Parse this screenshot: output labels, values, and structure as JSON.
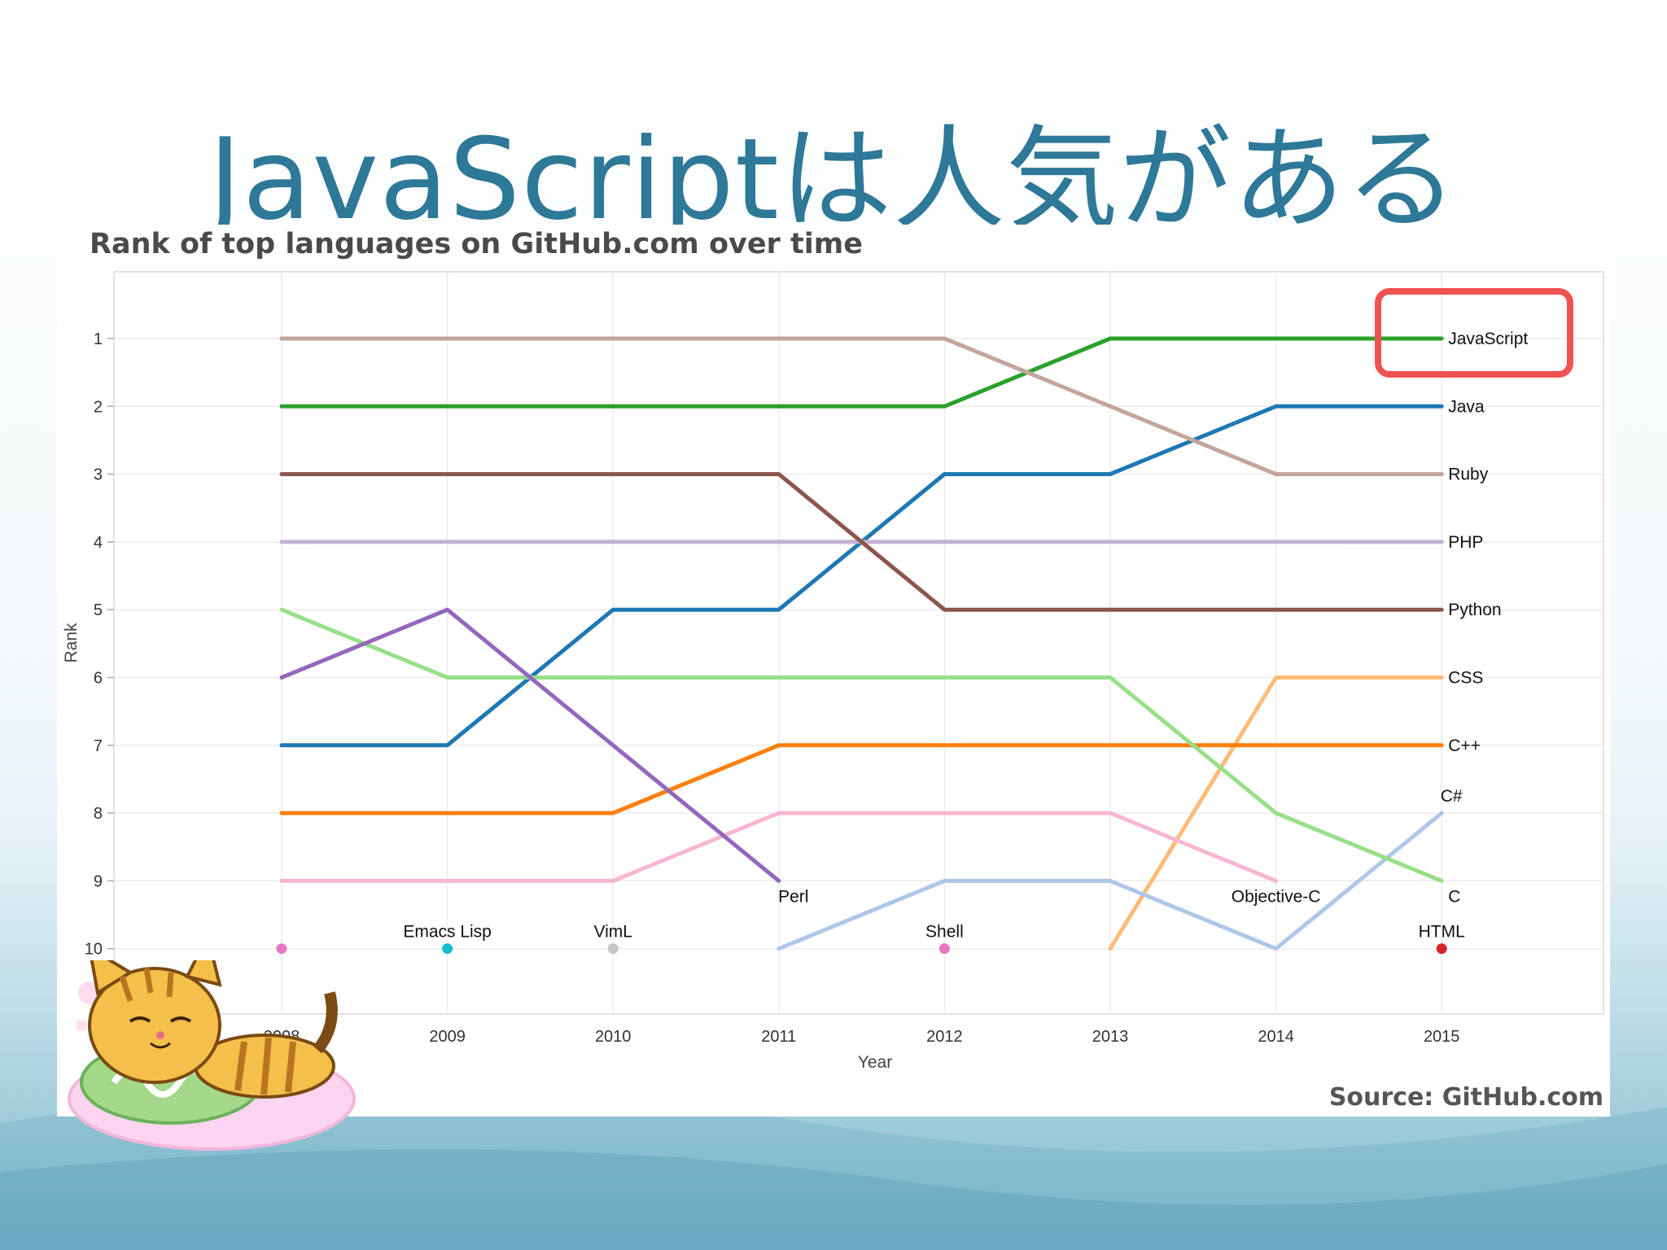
{
  "slide": {
    "title": "JavaScriptは人気がある",
    "highlight_color": "#f0524f"
  },
  "chart_data": {
    "type": "line",
    "title": "Rank of top languages on GitHub.com over time",
    "xlabel": "Year",
    "ylabel": "Rank",
    "source": "Source: GitHub.com",
    "x": [
      "2008",
      "2009",
      "2010",
      "2011",
      "2012",
      "2013",
      "2014",
      "2015"
    ],
    "yticks": [
      1,
      2,
      3,
      4,
      5,
      6,
      7,
      8,
      9,
      10
    ],
    "ylim": [
      10,
      1
    ],
    "y_inverted": true,
    "grid": true,
    "series": [
      {
        "name": "JavaScript",
        "color": "#2ca02c",
        "width": 5,
        "values": [
          2,
          2,
          2,
          2,
          2,
          1,
          1,
          1
        ]
      },
      {
        "name": "Java",
        "color": "#1f77b4",
        "width": 5,
        "values": [
          7,
          7,
          5,
          5,
          3,
          3,
          2,
          2
        ]
      },
      {
        "name": "Ruby",
        "color": "#c4a59c",
        "width": 5,
        "values": [
          1,
          1,
          1,
          1,
          1,
          2,
          3,
          3
        ]
      },
      {
        "name": "PHP",
        "color": "#c5b0d5",
        "width": 5,
        "values": [
          4,
          4,
          4,
          4,
          4,
          4,
          4,
          4
        ]
      },
      {
        "name": "Python",
        "color": "#8c564b",
        "width": 5,
        "values": [
          3,
          3,
          3,
          3,
          5,
          5,
          5,
          5
        ]
      },
      {
        "name": "CSS",
        "color": "#ffbb78",
        "width": 5,
        "values": [
          null,
          null,
          null,
          null,
          null,
          10,
          6,
          6
        ]
      },
      {
        "name": "C++",
        "color": "#ff7f0e",
        "width": 5,
        "values": [
          8,
          8,
          8,
          7,
          7,
          7,
          7,
          7
        ]
      },
      {
        "name": "C#",
        "color": "#aec7e8",
        "width": 5,
        "values": [
          null,
          null,
          null,
          10,
          9,
          9,
          10,
          8
        ]
      },
      {
        "name": "C",
        "color": "#98df8a",
        "width": 5,
        "values": [
          5,
          6,
          6,
          6,
          6,
          6,
          8,
          9
        ]
      },
      {
        "name": "Objective-C",
        "color": "#f7b6d2",
        "width": 5,
        "values": [
          9,
          9,
          9,
          8,
          8,
          8,
          9,
          null
        ]
      },
      {
        "name": "Perl",
        "color": "#9467bd",
        "width": 5,
        "values": [
          6,
          5,
          7,
          9,
          null,
          null,
          null,
          null
        ]
      }
    ],
    "points": [
      {
        "x": "2008",
        "y": 10,
        "color": "#e377c2",
        "label": ""
      },
      {
        "x": "2009",
        "y": 10,
        "color": "#17becf",
        "label": "Emacs Lisp"
      },
      {
        "x": "2010",
        "y": 10,
        "color": "#c7c7c7",
        "label": "VimL"
      },
      {
        "x": "2012",
        "y": 10,
        "color": "#e377c2",
        "label": "Shell"
      },
      {
        "x": "2015",
        "y": 10,
        "color": "#d62728",
        "label": "HTML"
      }
    ],
    "line_labels": [
      {
        "text": "JavaScript",
        "x": "2015",
        "y": 1
      },
      {
        "text": "Java",
        "x": "2015",
        "y": 2
      },
      {
        "text": "Ruby",
        "x": "2015",
        "y": 3
      },
      {
        "text": "PHP",
        "x": "2015",
        "y": 4
      },
      {
        "text": "Python",
        "x": "2015",
        "y": 5
      },
      {
        "text": "CSS",
        "x": "2015",
        "y": 6
      },
      {
        "text": "C++",
        "x": "2015",
        "y": 7
      },
      {
        "text": "C#",
        "x": "2015",
        "y": 8
      },
      {
        "text": "C",
        "x": "2015",
        "y": 9
      },
      {
        "text": "Perl",
        "x": "2011",
        "y": 9
      },
      {
        "text": "Objective-C",
        "x": "2014",
        "y": 9
      }
    ],
    "highlight": "JavaScript"
  }
}
